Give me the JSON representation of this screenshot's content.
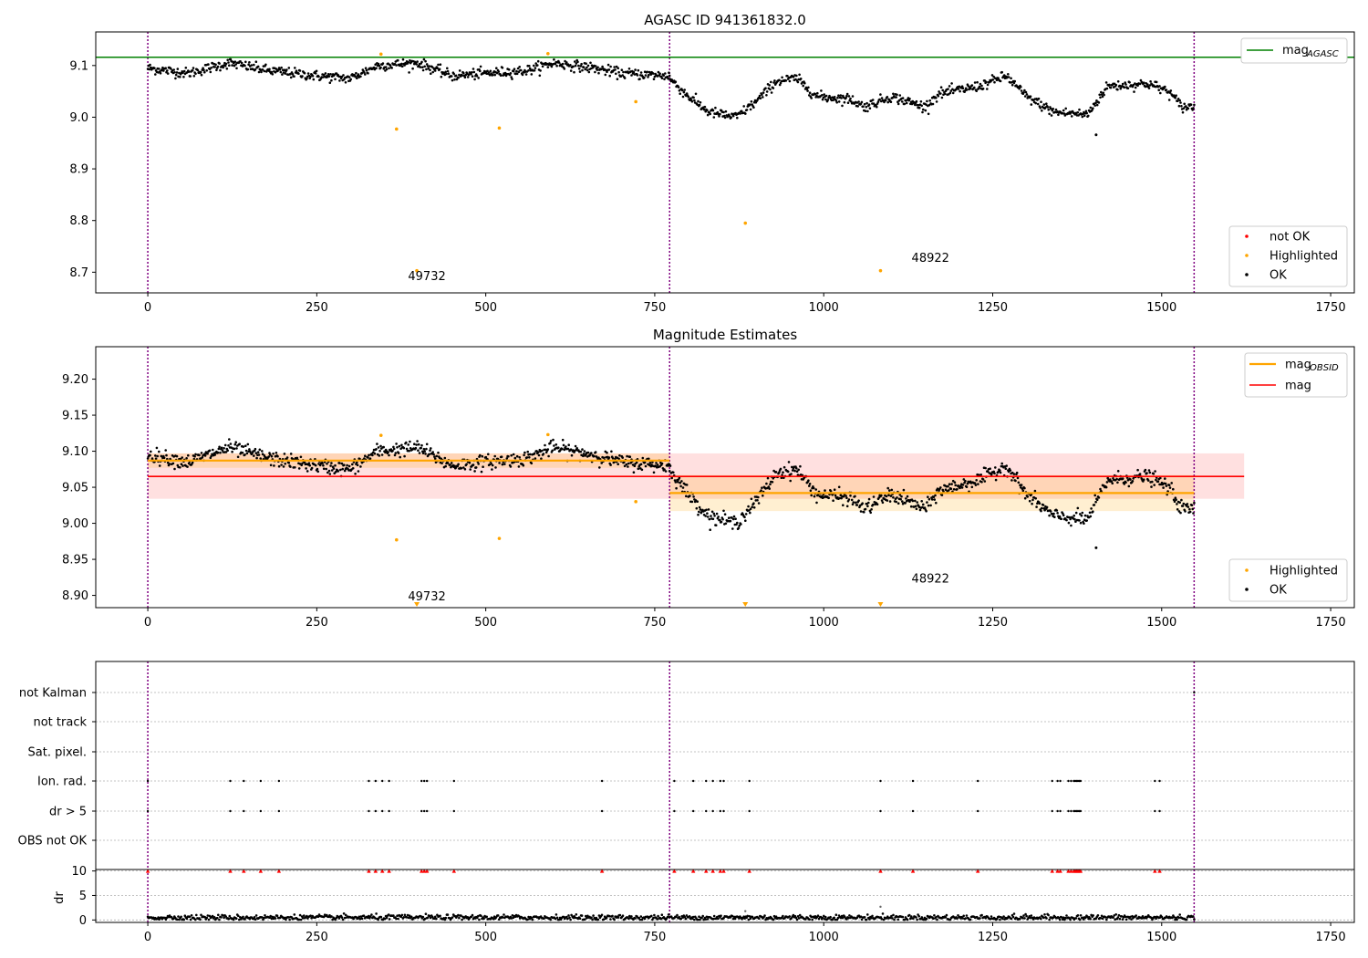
{
  "chart_data": [
    {
      "type": "scatter",
      "title": "AGASC ID 941361832.0",
      "xlim": [
        -77,
        1785
      ],
      "ylim": [
        8.66,
        9.165
      ],
      "xticks": [
        0,
        250,
        500,
        750,
        1000,
        1250,
        1500,
        1750
      ],
      "yticks": [
        8.7,
        8.8,
        8.9,
        9.0,
        9.1
      ],
      "ytick_labels": [
        "8.7",
        "8.8",
        "8.9",
        "9.0",
        "9.1"
      ],
      "obs_boundaries": [
        0,
        772,
        1548
      ],
      "agasc_mag": 9.116,
      "agasc_line_xrange": [
        -77,
        1785
      ],
      "lines_legend": [
        {
          "label": "mag",
          "sub": "AGASC",
          "color": "#008000"
        }
      ],
      "points_legend": [
        {
          "label": "not OK",
          "color": "#ff0000"
        },
        {
          "label": "Highlighted",
          "color": "#ffa500"
        },
        {
          "label": "OK",
          "color": "#000000"
        }
      ],
      "highlighted": [
        {
          "x": 345,
          "y": 9.122
        },
        {
          "x": 368,
          "y": 8.977
        },
        {
          "x": 398,
          "y": 8.703
        },
        {
          "x": 520,
          "y": 8.979
        },
        {
          "x": 592,
          "y": 9.123
        },
        {
          "x": 722,
          "y": 9.03
        },
        {
          "x": 884,
          "y": 8.795
        },
        {
          "x": 1084,
          "y": 8.703
        }
      ],
      "annotations": [
        {
          "text": "49732",
          "x": 385,
          "y": 8.685
        },
        {
          "text": "48922",
          "x": 1130,
          "y": 8.72
        }
      ],
      "ok_segments": [
        {
          "x0": 0,
          "x1": 772,
          "levels": [
            [
              0,
              9.095
            ],
            [
              60,
              9.085
            ],
            [
              120,
              9.105
            ],
            [
              180,
              9.09
            ],
            [
              250,
              9.08
            ],
            [
              300,
              9.075
            ],
            [
              340,
              9.1
            ],
            [
              400,
              9.105
            ],
            [
              450,
              9.08
            ],
            [
              500,
              9.085
            ],
            [
              560,
              9.09
            ],
            [
              600,
              9.105
            ],
            [
              660,
              9.095
            ],
            [
              700,
              9.085
            ],
            [
              772,
              9.08
            ]
          ],
          "scatter": 0.009,
          "n": 700
        },
        {
          "x0": 772,
          "x1": 1548,
          "levels": [
            [
              772,
              9.075
            ],
            [
              800,
              9.04
            ],
            [
              830,
              9.01
            ],
            [
              870,
              9.0
            ],
            [
              900,
              9.03
            ],
            [
              930,
              9.07
            ],
            [
              960,
              9.075
            ],
            [
              990,
              9.04
            ],
            [
              1040,
              9.035
            ],
            [
              1060,
              9.02
            ],
            [
              1100,
              9.04
            ],
            [
              1150,
              9.02
            ],
            [
              1170,
              9.045
            ],
            [
              1230,
              9.06
            ],
            [
              1270,
              9.08
            ],
            [
              1300,
              9.04
            ],
            [
              1340,
              9.01
            ],
            [
              1390,
              9.005
            ],
            [
              1420,
              9.06
            ],
            [
              1480,
              9.065
            ],
            [
              1510,
              9.05
            ],
            [
              1530,
              9.02
            ],
            [
              1548,
              9.02
            ]
          ],
          "scatter": 0.009,
          "n": 700
        }
      ],
      "ok_outliers": [
        {
          "x": 1403,
          "y": 8.966
        }
      ]
    },
    {
      "type": "scatter",
      "title": "Magnitude Estimates",
      "xlim": [
        -77,
        1785
      ],
      "ylim": [
        8.883,
        9.245
      ],
      "xticks": [
        0,
        250,
        500,
        750,
        1000,
        1250,
        1500,
        1750
      ],
      "yticks": [
        8.9,
        8.95,
        9.0,
        9.05,
        9.1,
        9.15,
        9.2
      ],
      "ytick_labels": [
        "8.90",
        "8.95",
        "9.00",
        "9.05",
        "9.10",
        "9.15",
        "9.20"
      ],
      "obs_boundaries": [
        0,
        772,
        1548
      ],
      "mag": {
        "value": 9.065,
        "band": [
          9.034,
          9.097
        ],
        "xrange": [
          0,
          1622
        ],
        "color": "#ff0000"
      },
      "mag_obsid": [
        {
          "x0": 0,
          "x1": 772,
          "value": 9.087,
          "band": [
            9.077,
            9.097
          ]
        },
        {
          "x0": 772,
          "x1": 1548,
          "value": 9.042,
          "band": [
            9.017,
            9.067
          ]
        }
      ],
      "lines_legend": [
        {
          "label": "mag",
          "sub": "OBSID",
          "color": "#ffa500"
        },
        {
          "label": "mag",
          "sub": "",
          "color": "#ff0000"
        }
      ],
      "points_legend": [
        {
          "label": "Highlighted",
          "color": "#ffa500"
        },
        {
          "label": "OK",
          "color": "#000000"
        }
      ],
      "highlighted": [
        {
          "x": 345,
          "y": 9.122
        },
        {
          "x": 368,
          "y": 8.977
        },
        {
          "x": 520,
          "y": 8.979
        },
        {
          "x": 592,
          "y": 9.123
        },
        {
          "x": 722,
          "y": 9.03
        }
      ],
      "off_scale_markers": [
        398,
        884,
        1084
      ],
      "annotations": [
        {
          "text": "49732",
          "x": 385,
          "y": 8.893
        },
        {
          "text": "48922",
          "x": 1130,
          "y": 8.918
        }
      ]
    },
    {
      "type": "scatter",
      "xlim": [
        -77,
        1785
      ],
      "xticks": [
        0,
        250,
        500,
        750,
        1000,
        1250,
        1500,
        1750
      ],
      "flag_categories": [
        "not Kalman",
        "not track",
        "Sat. pixel.",
        "Ion. rad.",
        "dr > 5",
        "OBS not OK"
      ],
      "flag_x": [
        0,
        122,
        142,
        167,
        194,
        327,
        337,
        347,
        357,
        405,
        409,
        413,
        453,
        672,
        779,
        807,
        826,
        836,
        847,
        852,
        890,
        1084,
        1132,
        1228,
        1338,
        1346,
        1350,
        1362,
        1366,
        1370,
        1372,
        1374,
        1376,
        1378,
        1380,
        1490,
        1497
      ],
      "not_kalman_x": [
        1548
      ],
      "dr_ylim": [
        -0.5,
        10.3
      ],
      "dr_ticks": [
        0,
        5,
        10
      ],
      "dr_ylabel": "dr",
      "dr_cap": 10,
      "dr_baseline": 0.5,
      "dr_outliers": [
        {
          "x": 884,
          "y": 1.8
        },
        {
          "x": 1084,
          "y": 2.7
        }
      ]
    }
  ]
}
